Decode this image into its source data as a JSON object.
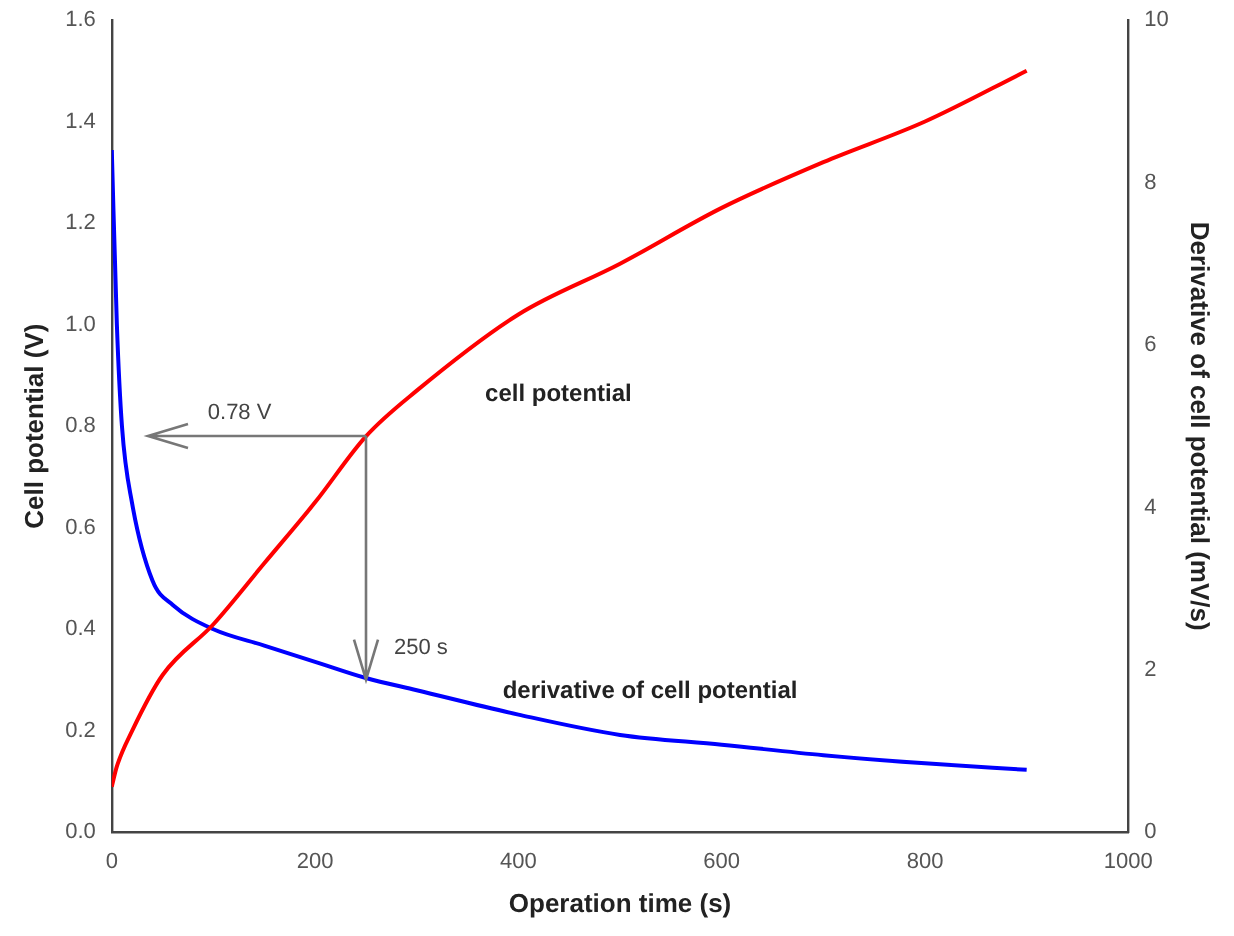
{
  "chart_data": {
    "type": "line",
    "xlabel": "Operation time (s)",
    "ylabel": "Cell potential (V)",
    "y2label": "Derivative of cell potential (mV/s)",
    "xlim": [
      0,
      1000
    ],
    "xticks": [
      0,
      200,
      400,
      600,
      800,
      1000
    ],
    "ylim": [
      0,
      1.6
    ],
    "yticks": [
      {
        "value": 0,
        "label": "0.0"
      },
      {
        "value": 0.2,
        "label": "0.2"
      },
      {
        "value": 0.4,
        "label": "0.4"
      },
      {
        "value": 0.6,
        "label": "0.6"
      },
      {
        "value": 0.8,
        "label": "0.8"
      },
      {
        "value": 1,
        "label": "1.0"
      },
      {
        "value": 1.2,
        "label": "1.2"
      },
      {
        "value": 1.4,
        "label": "1.4"
      },
      {
        "value": 1.6,
        "label": "1.6"
      }
    ],
    "y2lim": [
      0,
      10
    ],
    "y2ticks": [
      0,
      2,
      4,
      6,
      8,
      10
    ],
    "grid": false,
    "legend": false,
    "marker": "none",
    "line_style": "solid",
    "series": [
      {
        "name": "cell potential",
        "color": "#ff0000",
        "x": [
          0,
          5,
          20,
          50,
          100,
          150,
          200,
          250,
          300,
          400,
          500,
          600,
          700,
          800,
          900
        ],
        "values": [
          0.09,
          0.13,
          0.2,
          0.31,
          0.41,
          0.53,
          0.65,
          0.78,
          0.87,
          1.02,
          1.12,
          1.23,
          1.32,
          1.4,
          1.5
        ]
      },
      {
        "name": "derivative of cell potential",
        "color": "#0000ff",
        "axis": "y2",
        "x": [
          0,
          5,
          10,
          20,
          40,
          60,
          100,
          150,
          200,
          250,
          300,
          400,
          500,
          600,
          700,
          800,
          900
        ],
        "values": [
          8.4,
          6.25,
          5.0,
          4.05,
          3.1,
          2.8,
          2.5,
          2.3,
          2.1,
          1.9,
          1.75,
          1.45,
          1.2,
          1.08,
          0.95,
          0.85,
          0.77
        ]
      }
    ],
    "annotations": [
      "0.78 V",
      {
        "text": "250 s",
        "x": 250,
        "y": 0.3
      }
    ]
  }
}
